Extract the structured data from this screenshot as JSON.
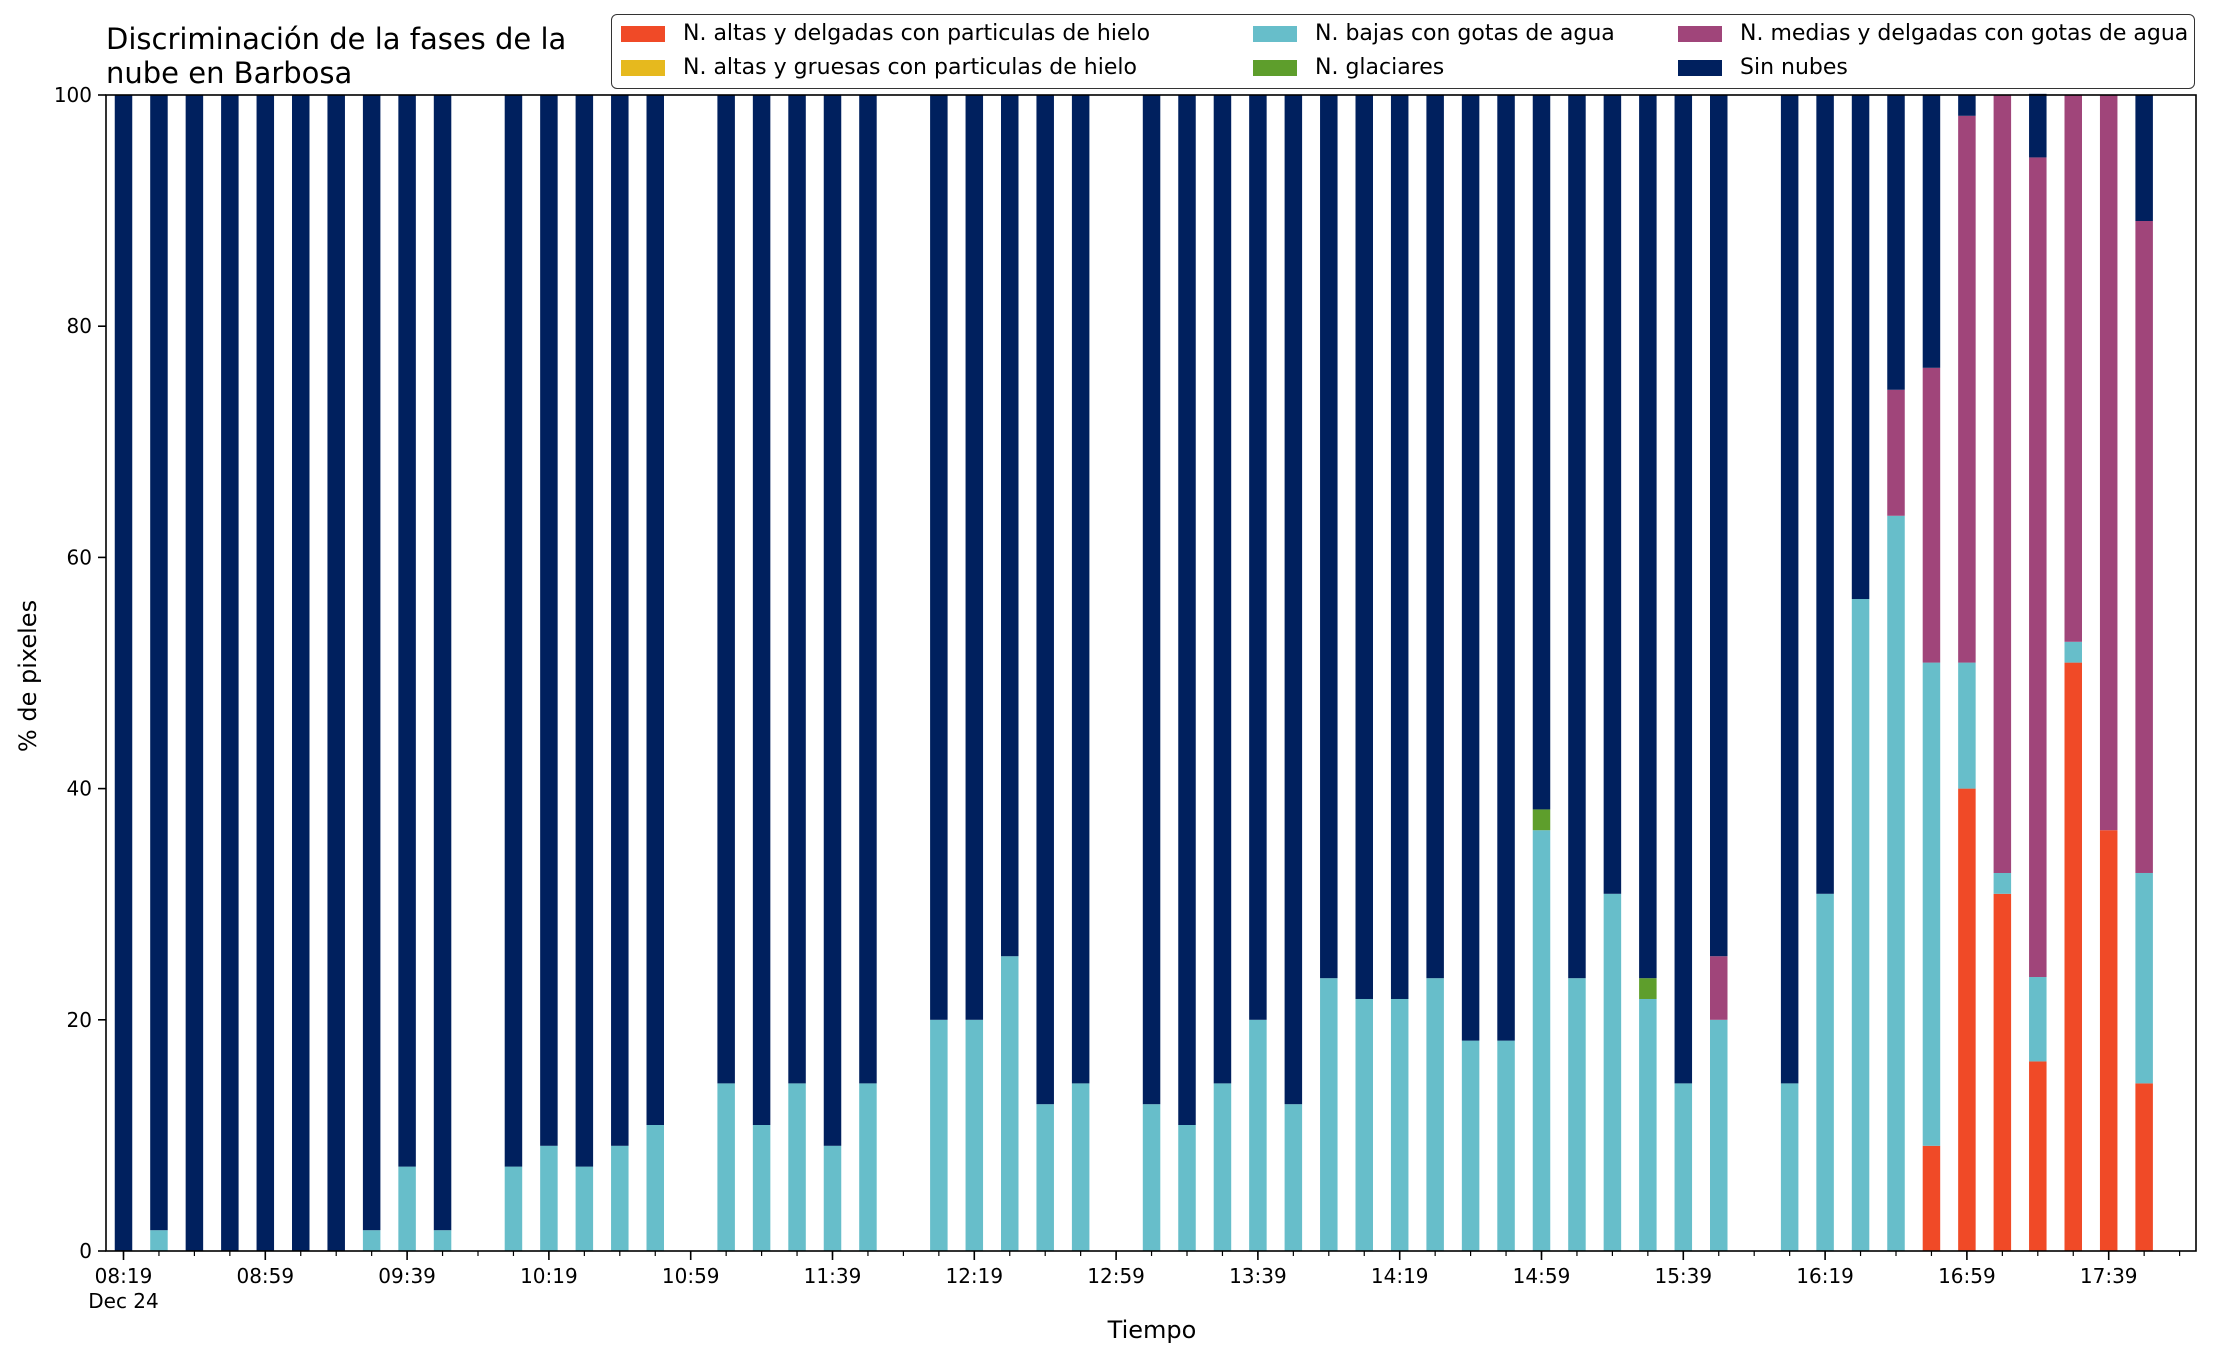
{
  "chart_data": {
    "type": "bar",
    "stacked": true,
    "title": "Discriminación de la fases de la nube en Barbosa",
    "title_lines": [
      "Discriminación de la fases de la",
      "nube en Barbosa"
    ],
    "xlabel": "Tiempo",
    "ylabel": "% de pixeles",
    "ylim": [
      0,
      100
    ],
    "yticks": [
      "0",
      "20",
      "40",
      "60",
      "80",
      "100"
    ],
    "xticks": [
      {
        "slot": 0,
        "label": "08:19",
        "sublabel": "Dec 24"
      },
      {
        "slot": 4,
        "label": "08:59"
      },
      {
        "slot": 8,
        "label": "09:39"
      },
      {
        "slot": 12,
        "label": "10:19"
      },
      {
        "slot": 16,
        "label": "10:59"
      },
      {
        "slot": 20,
        "label": "11:39"
      },
      {
        "slot": 24,
        "label": "12:19"
      },
      {
        "slot": 28,
        "label": "12:59"
      },
      {
        "slot": 32,
        "label": "13:39"
      },
      {
        "slot": 36,
        "label": "14:19"
      },
      {
        "slot": 40,
        "label": "14:59"
      },
      {
        "slot": 44,
        "label": "15:39"
      },
      {
        "slot": 48,
        "label": "16:19"
      },
      {
        "slot": 52,
        "label": "16:59"
      },
      {
        "slot": 56,
        "label": "17:39"
      }
    ],
    "slots": [
      0,
      1,
      2,
      3,
      4,
      5,
      6,
      7,
      8,
      9,
      11,
      12,
      13,
      14,
      15,
      17,
      18,
      19,
      20,
      21,
      23,
      24,
      25,
      26,
      27,
      29,
      30,
      31,
      32,
      33,
      34,
      35,
      36,
      37,
      38,
      39,
      40,
      41,
      42,
      43,
      44,
      45,
      47,
      48,
      49,
      50,
      51,
      52,
      53,
      54,
      55,
      56,
      57
    ],
    "legend_position": "top-right",
    "series": [
      {
        "name": "N. altas y delgadas con particulas de hielo",
        "color": "#F04A27",
        "values": [
          0,
          0,
          0,
          0,
          0,
          0,
          0,
          0,
          0,
          0,
          0,
          0,
          0,
          0,
          0,
          0,
          0,
          0,
          0,
          0,
          0,
          0,
          0,
          0,
          0,
          0,
          0,
          0,
          0,
          0,
          0,
          0,
          0,
          0,
          0,
          0,
          0,
          0,
          0,
          0,
          0,
          0,
          0,
          0,
          0,
          0,
          9.1,
          40,
          30.9,
          16.4,
          50.9,
          36.4,
          14.5
        ]
      },
      {
        "name": "N. altas y gruesas con particulas de hielo",
        "color": "#E6B91E",
        "values": [
          0,
          0,
          0,
          0,
          0,
          0,
          0,
          0,
          0,
          0,
          0,
          0,
          0,
          0,
          0,
          0,
          0,
          0,
          0,
          0,
          0,
          0,
          0,
          0,
          0,
          0,
          0,
          0,
          0,
          0,
          0,
          0,
          0,
          0,
          0,
          0,
          0,
          0,
          0,
          0,
          0,
          0,
          0,
          0,
          0,
          0,
          0,
          0,
          0,
          0,
          0,
          0,
          0
        ]
      },
      {
        "name": "N. bajas con gotas de agua",
        "color": "#67BECA",
        "values": [
          0,
          1.8,
          0,
          0,
          0,
          0,
          0,
          1.8,
          7.3,
          1.8,
          7.3,
          9.1,
          7.3,
          9.1,
          10.9,
          14.5,
          10.9,
          14.5,
          9.1,
          14.5,
          20,
          20,
          25.5,
          12.7,
          14.5,
          12.7,
          10.9,
          14.5,
          20,
          12.7,
          23.6,
          21.8,
          21.8,
          23.6,
          18.2,
          18.2,
          36.4,
          23.6,
          30.9,
          21.8,
          14.5,
          20,
          14.5,
          30.9,
          56.4,
          63.6,
          41.8,
          10.9,
          1.8,
          7.3,
          1.8,
          0,
          18.2
        ]
      },
      {
        "name": "N. glaciares",
        "color": "#5E9E2C",
        "values": [
          0,
          0,
          0,
          0,
          0,
          0,
          0,
          0,
          0,
          0,
          0,
          0,
          0,
          0,
          0,
          0,
          0,
          0,
          0,
          0,
          0,
          0,
          0,
          0,
          0,
          0,
          0,
          0,
          0,
          0,
          0,
          0,
          0,
          0,
          0,
          0,
          1.8,
          0,
          0,
          1.8,
          0,
          0,
          0,
          0,
          0,
          0,
          0,
          0,
          0,
          0,
          0,
          0,
          0
        ]
      },
      {
        "name": "N. medias y delgadas con gotas de agua",
        "color": "#A0457A",
        "values": [
          0,
          0,
          0,
          0,
          0,
          0,
          0,
          0,
          0,
          0,
          0,
          0,
          0,
          0,
          0,
          0,
          0,
          0,
          0,
          0,
          0,
          0,
          0,
          0,
          0,
          0,
          0,
          0,
          0,
          0,
          0,
          0,
          0,
          0,
          0,
          0,
          0,
          0,
          0,
          0,
          0,
          5.5,
          0,
          0,
          0,
          10.9,
          25.5,
          47.3,
          67.3,
          70.9,
          47.3,
          63.6,
          56.4
        ]
      },
      {
        "name": "Sin nubes",
        "color": "#00205E",
        "values": [
          100,
          98.2,
          100,
          100,
          100,
          100,
          100,
          98.2,
          92.7,
          98.2,
          92.7,
          90.9,
          92.7,
          90.9,
          89.1,
          85.5,
          89.1,
          85.5,
          90.9,
          85.5,
          80,
          80,
          74.5,
          87.3,
          85.5,
          87.3,
          89.1,
          85.5,
          80,
          87.3,
          76.4,
          78.2,
          78.2,
          76.4,
          81.8,
          81.8,
          61.8,
          76.4,
          69.1,
          76.4,
          85.5,
          74.5,
          85.5,
          69.1,
          43.6,
          25.5,
          23.6,
          1.8,
          0,
          5.5,
          0,
          0,
          10.9
        ]
      }
    ]
  }
}
